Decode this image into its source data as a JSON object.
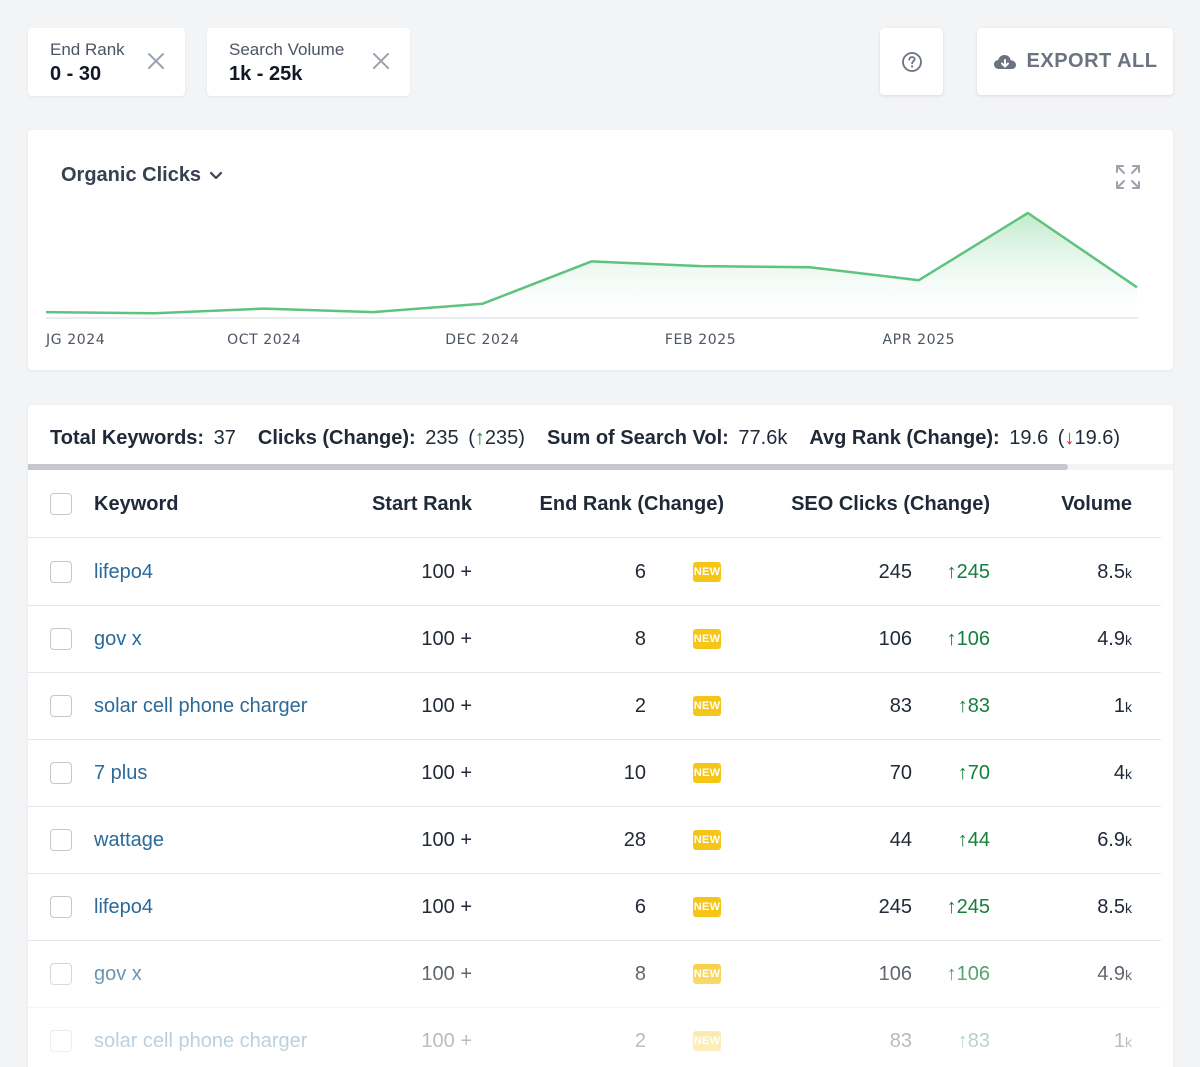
{
  "filters": [
    {
      "label": "End Rank",
      "value": "0 - 30"
    },
    {
      "label": "Search Volume",
      "value": "1k - 25k"
    }
  ],
  "toolbar": {
    "help_icon": "question-circle-icon",
    "export_icon": "cloud-download-icon",
    "export_label": "EXPORT ALL"
  },
  "chart_panel": {
    "metric_label": "Organic Clicks",
    "expand_icon": "expand-icon"
  },
  "chart_data": {
    "type": "area",
    "x_tick_labels": [
      "JG 2024",
      "OCT 2024",
      "DEC 2024",
      "FEB 2025",
      "APR 2025"
    ],
    "x": [
      "2024-08",
      "2024-09",
      "2024-10",
      "2024-11",
      "2024-12",
      "2025-01",
      "2025-02",
      "2025-03",
      "2025-04",
      "2025-05",
      "2025-06"
    ],
    "values": [
      5,
      4,
      8,
      5,
      12,
      48,
      44,
      43,
      32,
      89,
      26
    ],
    "ylim": [
      0,
      100
    ],
    "grid": false,
    "color": "#5fc27e",
    "fill_color": "#c9eed3"
  },
  "summary": {
    "total_keywords_label": "Total Keywords:",
    "total_keywords_value": "37",
    "clicks_label": "Clicks (Change):",
    "clicks_value": "235",
    "clicks_change": "235",
    "search_vol_label": "Sum of Search Vol:",
    "search_vol_value": "77.6k",
    "avg_rank_label": "Avg Rank (Change):",
    "avg_rank_value": "19.6",
    "avg_rank_change": "19.6"
  },
  "table": {
    "columns": {
      "keyword": "Keyword",
      "start_rank": "Start Rank",
      "end_rank": "End Rank (Change)",
      "seo_clicks": "SEO Clicks (Change)",
      "volume": "Volume"
    },
    "new_badge": "NEW",
    "rows": [
      {
        "keyword": "lifepo4",
        "start_rank": "100 +",
        "end_rank": "6",
        "clicks": "245",
        "clicks_change": "245",
        "volume": "8.5",
        "volume_unit": "k"
      },
      {
        "keyword": "gov x",
        "start_rank": "100 +",
        "end_rank": "8",
        "clicks": "106",
        "clicks_change": "106",
        "volume": "4.9",
        "volume_unit": "k"
      },
      {
        "keyword": "solar cell phone charger",
        "start_rank": "100 +",
        "end_rank": "2",
        "clicks": "83",
        "clicks_change": "83",
        "volume": "1",
        "volume_unit": "k"
      },
      {
        "keyword": "7 plus",
        "start_rank": "100 +",
        "end_rank": "10",
        "clicks": "70",
        "clicks_change": "70",
        "volume": "4",
        "volume_unit": "k"
      },
      {
        "keyword": "wattage",
        "start_rank": "100 +",
        "end_rank": "28",
        "clicks": "44",
        "clicks_change": "44",
        "volume": "6.9",
        "volume_unit": "k"
      },
      {
        "keyword": "lifepo4",
        "start_rank": "100 +",
        "end_rank": "6",
        "clicks": "245",
        "clicks_change": "245",
        "volume": "8.5",
        "volume_unit": "k"
      },
      {
        "keyword": "gov x",
        "start_rank": "100 +",
        "end_rank": "8",
        "clicks": "106",
        "clicks_change": "106",
        "volume": "4.9",
        "volume_unit": "k"
      },
      {
        "keyword": "solar cell phone charger",
        "start_rank": "100 +",
        "end_rank": "2",
        "clicks": "83",
        "clicks_change": "83",
        "volume": "1",
        "volume_unit": "k"
      }
    ]
  }
}
